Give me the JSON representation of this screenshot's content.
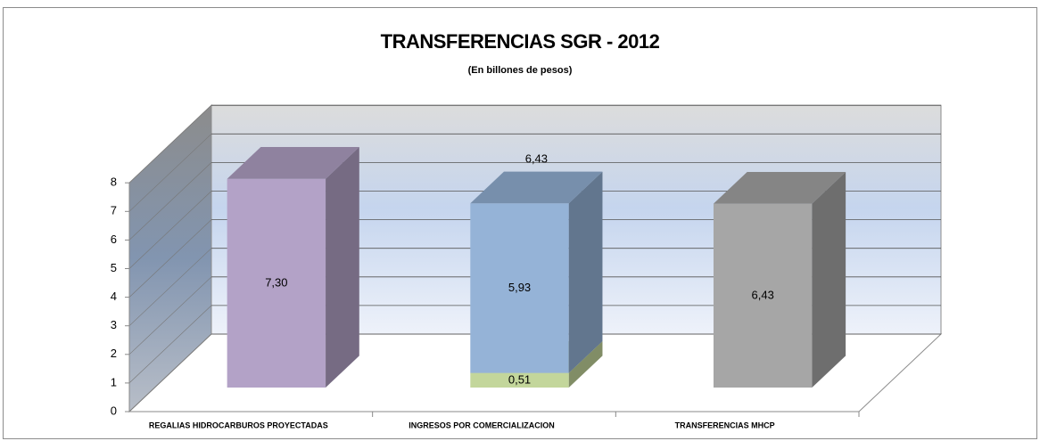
{
  "chart_data": {
    "type": "bar3d_stacked",
    "title": "TRANSFERENCIAS SGR - 2012",
    "subtitle": "(En billones de pesos)",
    "categories": [
      "REGALIAS HIDROCARBUROS PROYECTADAS",
      "INGRESOS POR COMERCIALIZACION",
      "TRANSFERENCIAS MHCP"
    ],
    "series": [
      {
        "color": "#b3a2c7",
        "values": [
          7.3,
          null,
          null
        ],
        "value_labels": [
          "7,30",
          null,
          null
        ]
      },
      {
        "color": "#c3d69b",
        "values": [
          null,
          0.51,
          null
        ],
        "value_labels": [
          null,
          "0,51",
          null
        ]
      },
      {
        "color": "#95b3d7",
        "values": [
          null,
          5.93,
          null
        ],
        "value_labels": [
          null,
          "5,93",
          null
        ]
      },
      {
        "color": "#a6a6a6",
        "values": [
          null,
          null,
          6.43
        ],
        "value_labels": [
          null,
          null,
          "6,43"
        ]
      }
    ],
    "total": {
      "values": [
        null,
        6.43,
        null
      ],
      "value_labels": [
        null,
        "6,43",
        null
      ]
    },
    "ylim": [
      0,
      8
    ],
    "yticks": [
      0,
      1,
      2,
      3,
      4,
      5,
      6,
      7,
      8
    ],
    "grid": true
  }
}
